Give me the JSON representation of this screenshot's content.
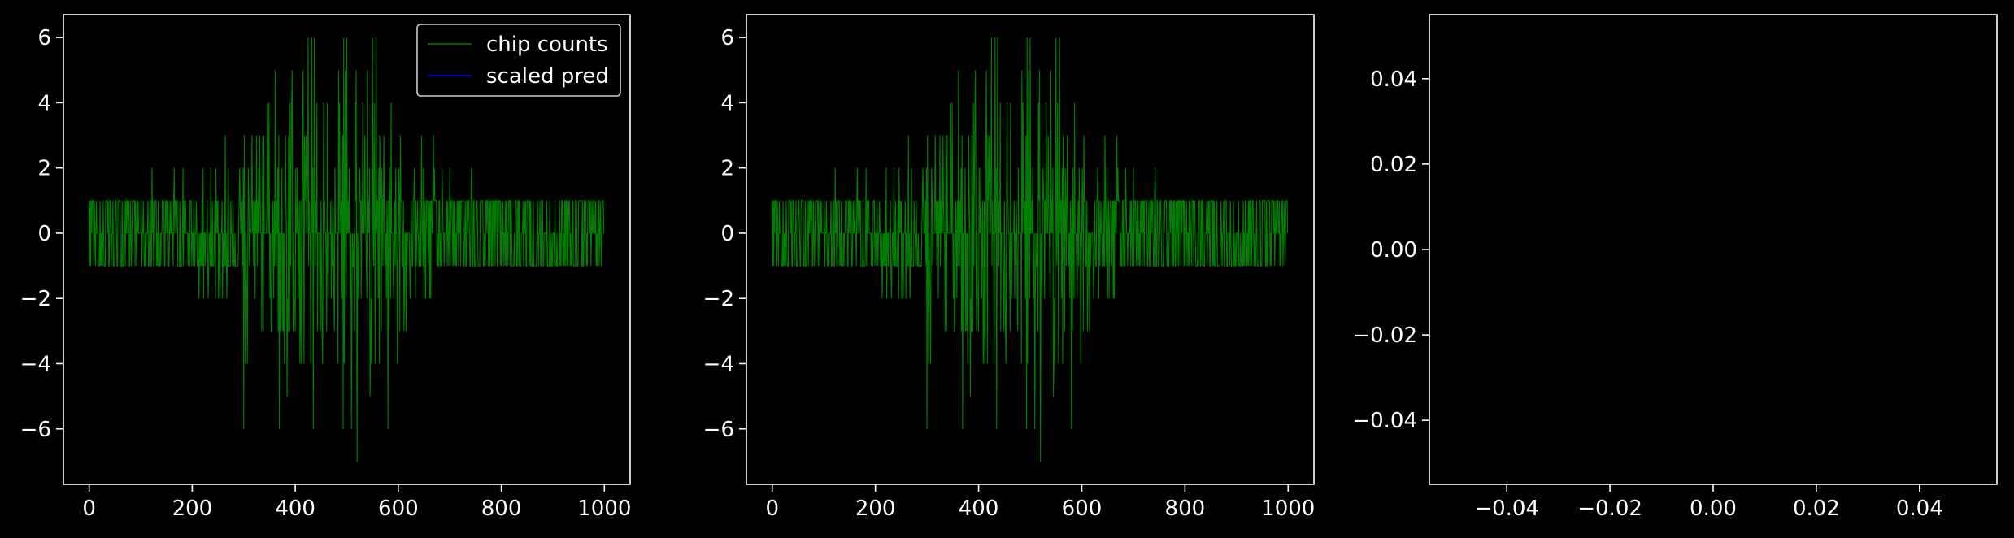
{
  "chart_data": [
    {
      "type": "line",
      "title": "",
      "xlabel": "",
      "ylabel": "",
      "xlim": [
        -50,
        1050
      ],
      "ylim": [
        -7.7,
        6.7
      ],
      "x_ticks": [
        0,
        200,
        400,
        600,
        800,
        1000
      ],
      "x_tick_labels": [
        "0",
        "200",
        "400",
        "600",
        "800",
        "1000"
      ],
      "y_ticks": [
        -6,
        -4,
        -2,
        0,
        2,
        4,
        6
      ],
      "y_tick_labels": [
        "−6",
        "−4",
        "−2",
        "0",
        "2",
        "4",
        "6"
      ],
      "legend": {
        "position": "upper right",
        "entries": [
          {
            "label": "chip counts",
            "color": "#008000"
          },
          {
            "label": "scaled pred",
            "color": "#0000ff"
          }
        ]
      },
      "series": [
        {
          "name": "chip counts",
          "color": "#008000",
          "n_points": 1000,
          "min": -7,
          "max": 6,
          "approx_extremes": [
            {
              "x": 425,
              "y": 6
            },
            {
              "x": 500,
              "y": 6
            },
            {
              "x": 540,
              "y": 5
            },
            {
              "x": 455,
              "y": 4
            },
            {
              "x": 520,
              "y": -7
            },
            {
              "x": 580,
              "y": -6
            },
            {
              "x": 300,
              "y": -6
            },
            {
              "x": 435,
              "y": -6
            }
          ]
        },
        {
          "name": "scaled pred",
          "color": "#0000ff",
          "values": []
        }
      ]
    },
    {
      "type": "line",
      "title": "",
      "xlabel": "",
      "ylabel": "",
      "xlim": [
        -50,
        1050
      ],
      "ylim": [
        -7.7,
        6.7
      ],
      "x_ticks": [
        0,
        200,
        400,
        600,
        800,
        1000
      ],
      "x_tick_labels": [
        "0",
        "200",
        "400",
        "600",
        "800",
        "1000"
      ],
      "y_ticks": [
        -6,
        -4,
        -2,
        0,
        2,
        4,
        6
      ],
      "y_tick_labels": [
        "−6",
        "−4",
        "−2",
        "0",
        "2",
        "4",
        "6"
      ],
      "series": [
        {
          "name": "chip counts",
          "color": "#008000",
          "n_points": 1000,
          "min": -7,
          "max": 6
        }
      ]
    },
    {
      "type": "line",
      "title": "",
      "xlabel": "",
      "ylabel": "",
      "xlim": [
        -0.055,
        0.055
      ],
      "ylim": [
        -0.055,
        0.055
      ],
      "x_ticks": [
        -0.04,
        -0.02,
        0.0,
        0.02,
        0.04
      ],
      "x_tick_labels": [
        "−0.04",
        "−0.02",
        "0.00",
        "0.02",
        "0.04"
      ],
      "y_ticks": [
        -0.04,
        -0.02,
        0.0,
        0.02,
        0.04
      ],
      "y_tick_labels": [
        "−0.04",
        "−0.02",
        "0.00",
        "0.02",
        "0.04"
      ],
      "series": []
    }
  ]
}
